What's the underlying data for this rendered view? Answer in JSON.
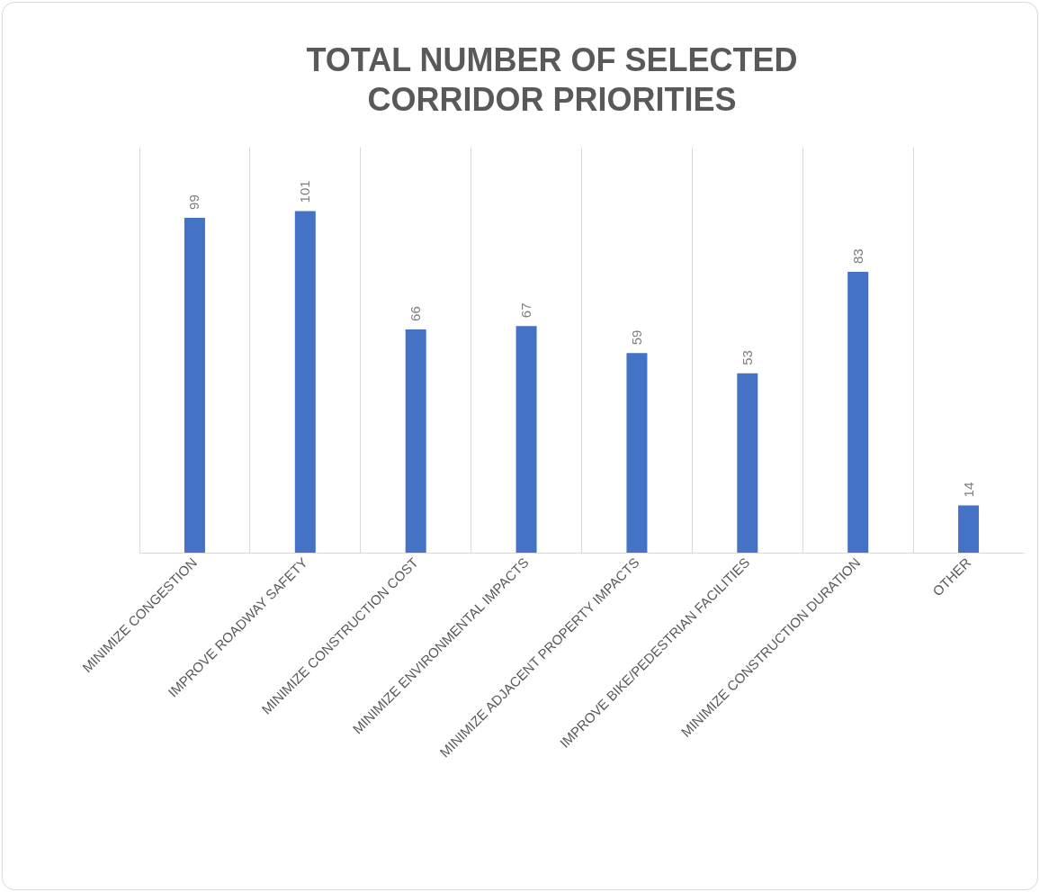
{
  "chart_data": {
    "type": "bar",
    "title": "TOTAL NUMBER OF SELECTED CORRIDOR PRIORITIES",
    "categories": [
      "MINIMIZE CONGESTION",
      "IMPROVE ROADWAY SAFETY",
      "MINIMIZE CONSTRUCTION COST",
      "MINIMIZE ENVIRONMENTAL IMPACTS",
      "MINIMIZE ADJACENT PROPERTY IMPACTS",
      "IMPROVE BIKE/PEDESTRIAN FACILITIES",
      "MINIMIZE CONSTRUCTION DURATION",
      "OTHER"
    ],
    "values": [
      99,
      101,
      66,
      67,
      59,
      53,
      83,
      14
    ],
    "color": "#4472c4",
    "ylim": [
      0,
      120
    ],
    "data_labels": true,
    "grid": "x",
    "tick_labels": "x"
  }
}
